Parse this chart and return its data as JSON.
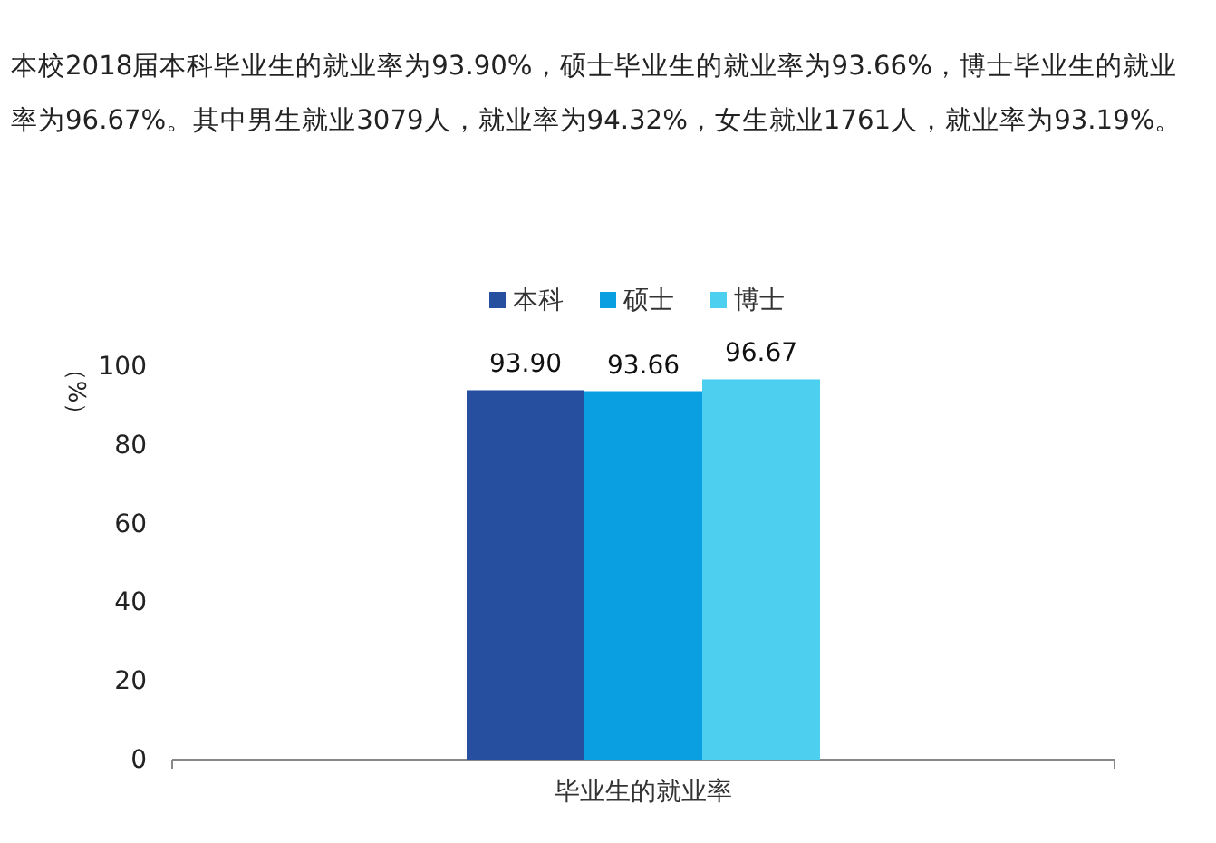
{
  "chart_data": {
    "type": "bar",
    "subtitle": "本校2018届本科毕业生的就业率为93.90%，硕士毕业生的就业率为93.66%，博士毕业生的就业率为96.67%。其中男生就业3079人，就业率为94.32%，女生就业1761人，就业率为93.19%。",
    "ylabel": "（%）",
    "categories": [
      "毕业生的就业率"
    ],
    "series": [
      {
        "name": "本科",
        "color": "#264fa0",
        "values": [
          93.9
        ]
      },
      {
        "name": "硕士",
        "color": "#0a9fe0",
        "values": [
          93.66
        ]
      },
      {
        "name": "博士",
        "color": "#4dcff0",
        "values": [
          96.67
        ]
      }
    ],
    "value_labels": [
      [
        "93.90"
      ],
      [
        "93.66"
      ],
      [
        "96.67"
      ]
    ],
    "ylim": [
      0,
      100
    ],
    "yticks": [
      0,
      20,
      40,
      60,
      80,
      100
    ],
    "legend": "top",
    "grid": false
  }
}
